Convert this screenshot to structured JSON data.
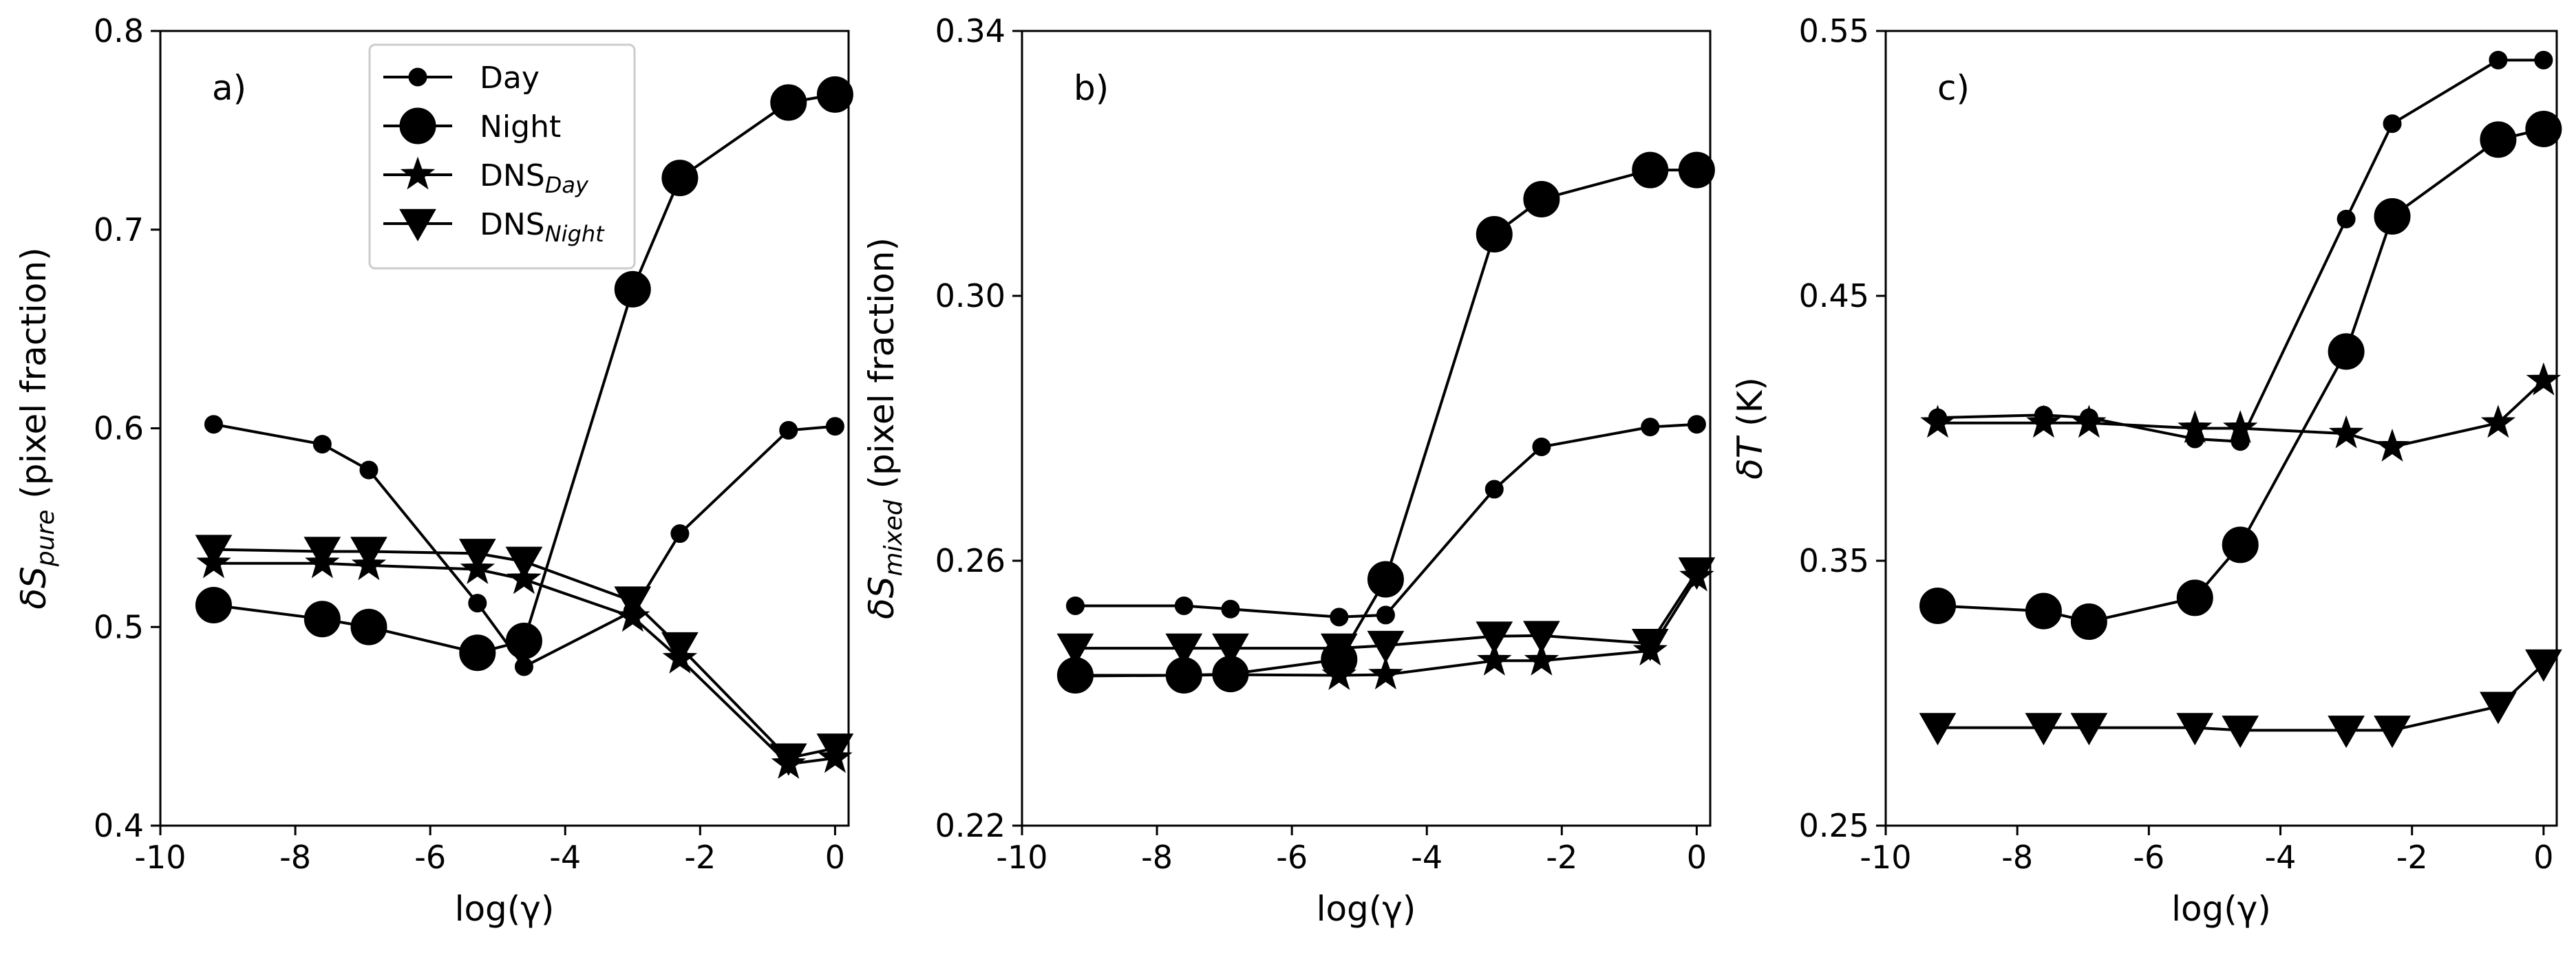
{
  "figure": {
    "background": "#ffffff",
    "ink": "#000000"
  },
  "legend": {
    "location": "upper-left of panel a",
    "entries": [
      {
        "marker": "small-circle",
        "label": "Day",
        "sub": ""
      },
      {
        "marker": "large-circle",
        "label": "Night",
        "sub": ""
      },
      {
        "marker": "star",
        "label": "DNS",
        "sub": "Day"
      },
      {
        "marker": "triangle-down",
        "label": "DNS",
        "sub": "Night"
      }
    ]
  },
  "chart_data": [
    {
      "type": "line",
      "panel_label": "a)",
      "xlabel": "log(γ)",
      "ylabel_prefix": "δS",
      "ylabel_sub": "pure",
      "ylabel_suffix": " (pixel fraction)",
      "xlim": [
        -10,
        0.2
      ],
      "ylim": [
        0.4,
        0.8
      ],
      "xticks": [
        -10,
        -8,
        -6,
        -4,
        -2,
        0
      ],
      "xtick_labels": [
        "-10",
        "-8",
        "-6",
        "-4",
        "-2",
        "0"
      ],
      "yticks": [
        0.4,
        0.5,
        0.6,
        0.7,
        0.8
      ],
      "ytick_labels": [
        "0.4",
        "0.5",
        "0.6",
        "0.7",
        "0.8"
      ],
      "x": [
        -9.21,
        -7.6,
        -6.91,
        -5.3,
        -4.61,
        -3.0,
        -2.3,
        -0.69,
        0.0
      ],
      "series": [
        {
          "name": "Day",
          "marker": "small-circle",
          "values": [
            0.602,
            0.592,
            0.579,
            0.512,
            0.48,
            0.508,
            0.547,
            0.599,
            0.601
          ]
        },
        {
          "name": "Night",
          "marker": "large-circle",
          "values": [
            0.511,
            0.504,
            0.5,
            0.487,
            0.493,
            0.67,
            0.726,
            0.764,
            0.768
          ]
        },
        {
          "name": "DNS_Day",
          "marker": "star",
          "values": [
            0.532,
            0.532,
            0.531,
            0.529,
            0.524,
            0.505,
            0.484,
            0.431,
            0.434
          ]
        },
        {
          "name": "DNS_Night",
          "marker": "triangle-down",
          "values": [
            0.539,
            0.538,
            0.538,
            0.537,
            0.533,
            0.513,
            0.49,
            0.434,
            0.439
          ]
        }
      ]
    },
    {
      "type": "line",
      "panel_label": "b)",
      "xlabel": "log(γ)",
      "ylabel_prefix": "δS",
      "ylabel_sub": "mixed",
      "ylabel_suffix": " (pixel fraction)",
      "xlim": [
        -10,
        0.2
      ],
      "ylim": [
        0.22,
        0.34
      ],
      "xticks": [
        -10,
        -8,
        -6,
        -4,
        -2,
        0
      ],
      "xtick_labels": [
        "-10",
        "-8",
        "-6",
        "-4",
        "-2",
        "0"
      ],
      "yticks": [
        0.22,
        0.26,
        0.3,
        0.34
      ],
      "ytick_labels": [
        "0.22",
        "0.26",
        "0.30",
        "0.34"
      ],
      "x": [
        -9.21,
        -7.6,
        -6.91,
        -5.3,
        -4.61,
        -3.0,
        -2.3,
        -0.69,
        0.0
      ],
      "series": [
        {
          "name": "Day",
          "marker": "small-circle",
          "values": [
            0.2532,
            0.2532,
            0.2527,
            0.2515,
            0.2518,
            0.2708,
            0.2772,
            0.2802,
            0.2806
          ]
        },
        {
          "name": "Night",
          "marker": "large-circle",
          "values": [
            0.2427,
            0.2427,
            0.2429,
            0.2451,
            0.2572,
            0.3093,
            0.3146,
            0.319,
            0.319
          ]
        },
        {
          "name": "DNS_Day",
          "marker": "star",
          "values": [
            0.2426,
            0.2427,
            0.2428,
            0.2427,
            0.2428,
            0.2449,
            0.2449,
            0.2464,
            0.2576
          ]
        },
        {
          "name": "DNS_Night",
          "marker": "triangle-down",
          "values": [
            0.2468,
            0.2468,
            0.2468,
            0.2468,
            0.2472,
            0.2486,
            0.2487,
            0.2475,
            0.2583
          ]
        }
      ]
    },
    {
      "type": "line",
      "panel_label": "c)",
      "xlabel": "log(γ)",
      "ylabel_prefix": "δT",
      "ylabel_sub": "",
      "ylabel_suffix": " (K)",
      "xlim": [
        -10,
        0.2
      ],
      "ylim": [
        0.25,
        0.55
      ],
      "xticks": [
        -10,
        -8,
        -6,
        -4,
        -2,
        0
      ],
      "xtick_labels": [
        "-10",
        "-8",
        "-6",
        "-4",
        "-2",
        "0"
      ],
      "yticks": [
        0.25,
        0.35,
        0.45,
        0.55
      ],
      "ytick_labels": [
        "0.25",
        "0.35",
        "0.45",
        "0.55"
      ],
      "x": [
        -9.21,
        -7.6,
        -6.91,
        -5.3,
        -4.61,
        -3.0,
        -2.3,
        -0.69,
        0.0
      ],
      "series": [
        {
          "name": "Day",
          "marker": "small-circle",
          "values": [
            0.404,
            0.405,
            0.404,
            0.396,
            0.395,
            0.479,
            0.515,
            0.539,
            0.539
          ]
        },
        {
          "name": "Night",
          "marker": "large-circle",
          "values": [
            0.333,
            0.331,
            0.327,
            0.336,
            0.356,
            0.429,
            0.48,
            0.509,
            0.513
          ]
        },
        {
          "name": "DNS_Day",
          "marker": "star",
          "values": [
            0.402,
            0.402,
            0.402,
            0.4,
            0.4,
            0.398,
            0.393,
            0.402,
            0.418
          ]
        },
        {
          "name": "DNS_Night",
          "marker": "triangle-down",
          "values": [
            0.287,
            0.287,
            0.287,
            0.287,
            0.286,
            0.286,
            0.286,
            0.295,
            0.311
          ]
        }
      ]
    }
  ]
}
